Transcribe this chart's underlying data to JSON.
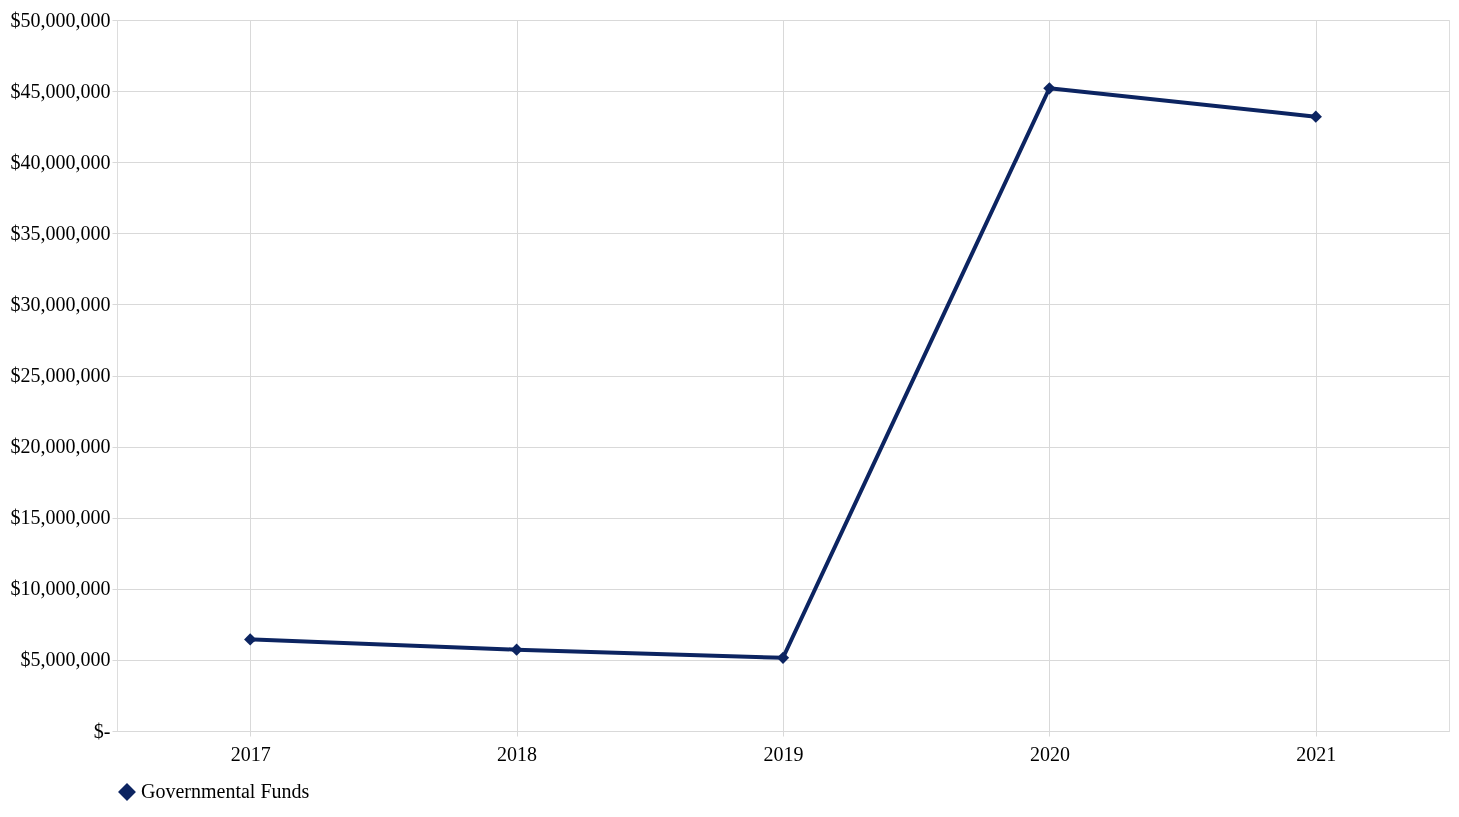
{
  "chart_data": {
    "type": "line",
    "categories": [
      "2017",
      "2018",
      "2019",
      "2020",
      "2021"
    ],
    "series": [
      {
        "name": "Governmental Funds",
        "color": "#0c2461",
        "values": [
          6440000,
          5720000,
          5150000,
          45200000,
          43200000
        ]
      }
    ],
    "ylim": [
      0,
      50000000
    ],
    "yticks": [
      {
        "value": 0,
        "label": "$-"
      },
      {
        "value": 5000000,
        "label": "$5,000,000"
      },
      {
        "value": 10000000,
        "label": "$10,000,000"
      },
      {
        "value": 15000000,
        "label": "$15,000,000"
      },
      {
        "value": 20000000,
        "label": "$20,000,000"
      },
      {
        "value": 25000000,
        "label": "$25,000,000"
      },
      {
        "value": 30000000,
        "label": "$30,000,000"
      },
      {
        "value": 35000000,
        "label": "$35,000,000"
      },
      {
        "value": 40000000,
        "label": "$40,000,000"
      },
      {
        "value": 45000000,
        "label": "$45,000,000"
      },
      {
        "value": 50000000,
        "label": "$50,000,000"
      }
    ],
    "grid": true,
    "legend": "bottom",
    "marker": "diamond",
    "line_style": "solid"
  }
}
